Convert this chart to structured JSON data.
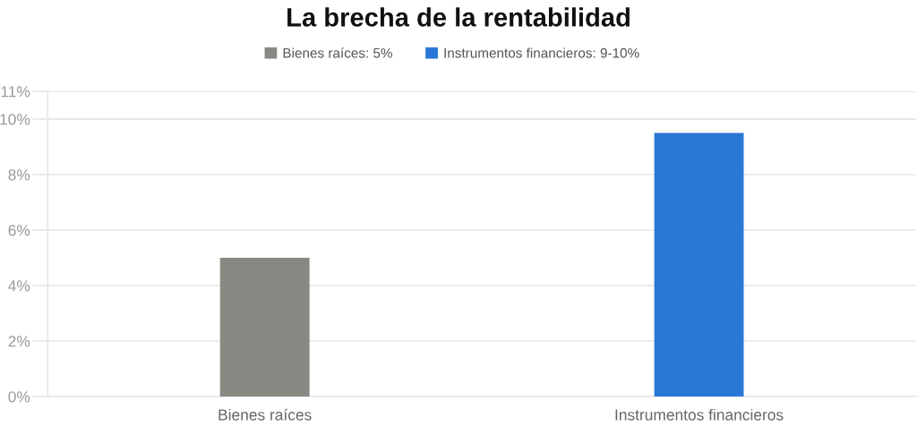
{
  "chart_data": {
    "type": "bar",
    "title": "La brecha de la rentabilidad",
    "categories": [
      "Bienes raíces",
      "Instrumentos financieros"
    ],
    "series": [
      {
        "name": "Bienes raíces: 5%",
        "color": "#8a8883",
        "values": [
          5,
          null
        ]
      },
      {
        "name": "Instrumentos financieros: 9-10%",
        "color": "#2a78d6",
        "values": [
          null,
          9.5
        ]
      }
    ],
    "ylim": [
      0,
      11
    ],
    "yticks": [
      {
        "value": 0,
        "label": "0%"
      },
      {
        "value": 2,
        "label": "2%"
      },
      {
        "value": 4,
        "label": "4%"
      },
      {
        "value": 6,
        "label": "6%"
      },
      {
        "value": 8,
        "label": "8%"
      },
      {
        "value": 10,
        "label": "10%"
      },
      {
        "value": 11,
        "label": "11%"
      }
    ],
    "grid": "y",
    "legend": "top"
  }
}
